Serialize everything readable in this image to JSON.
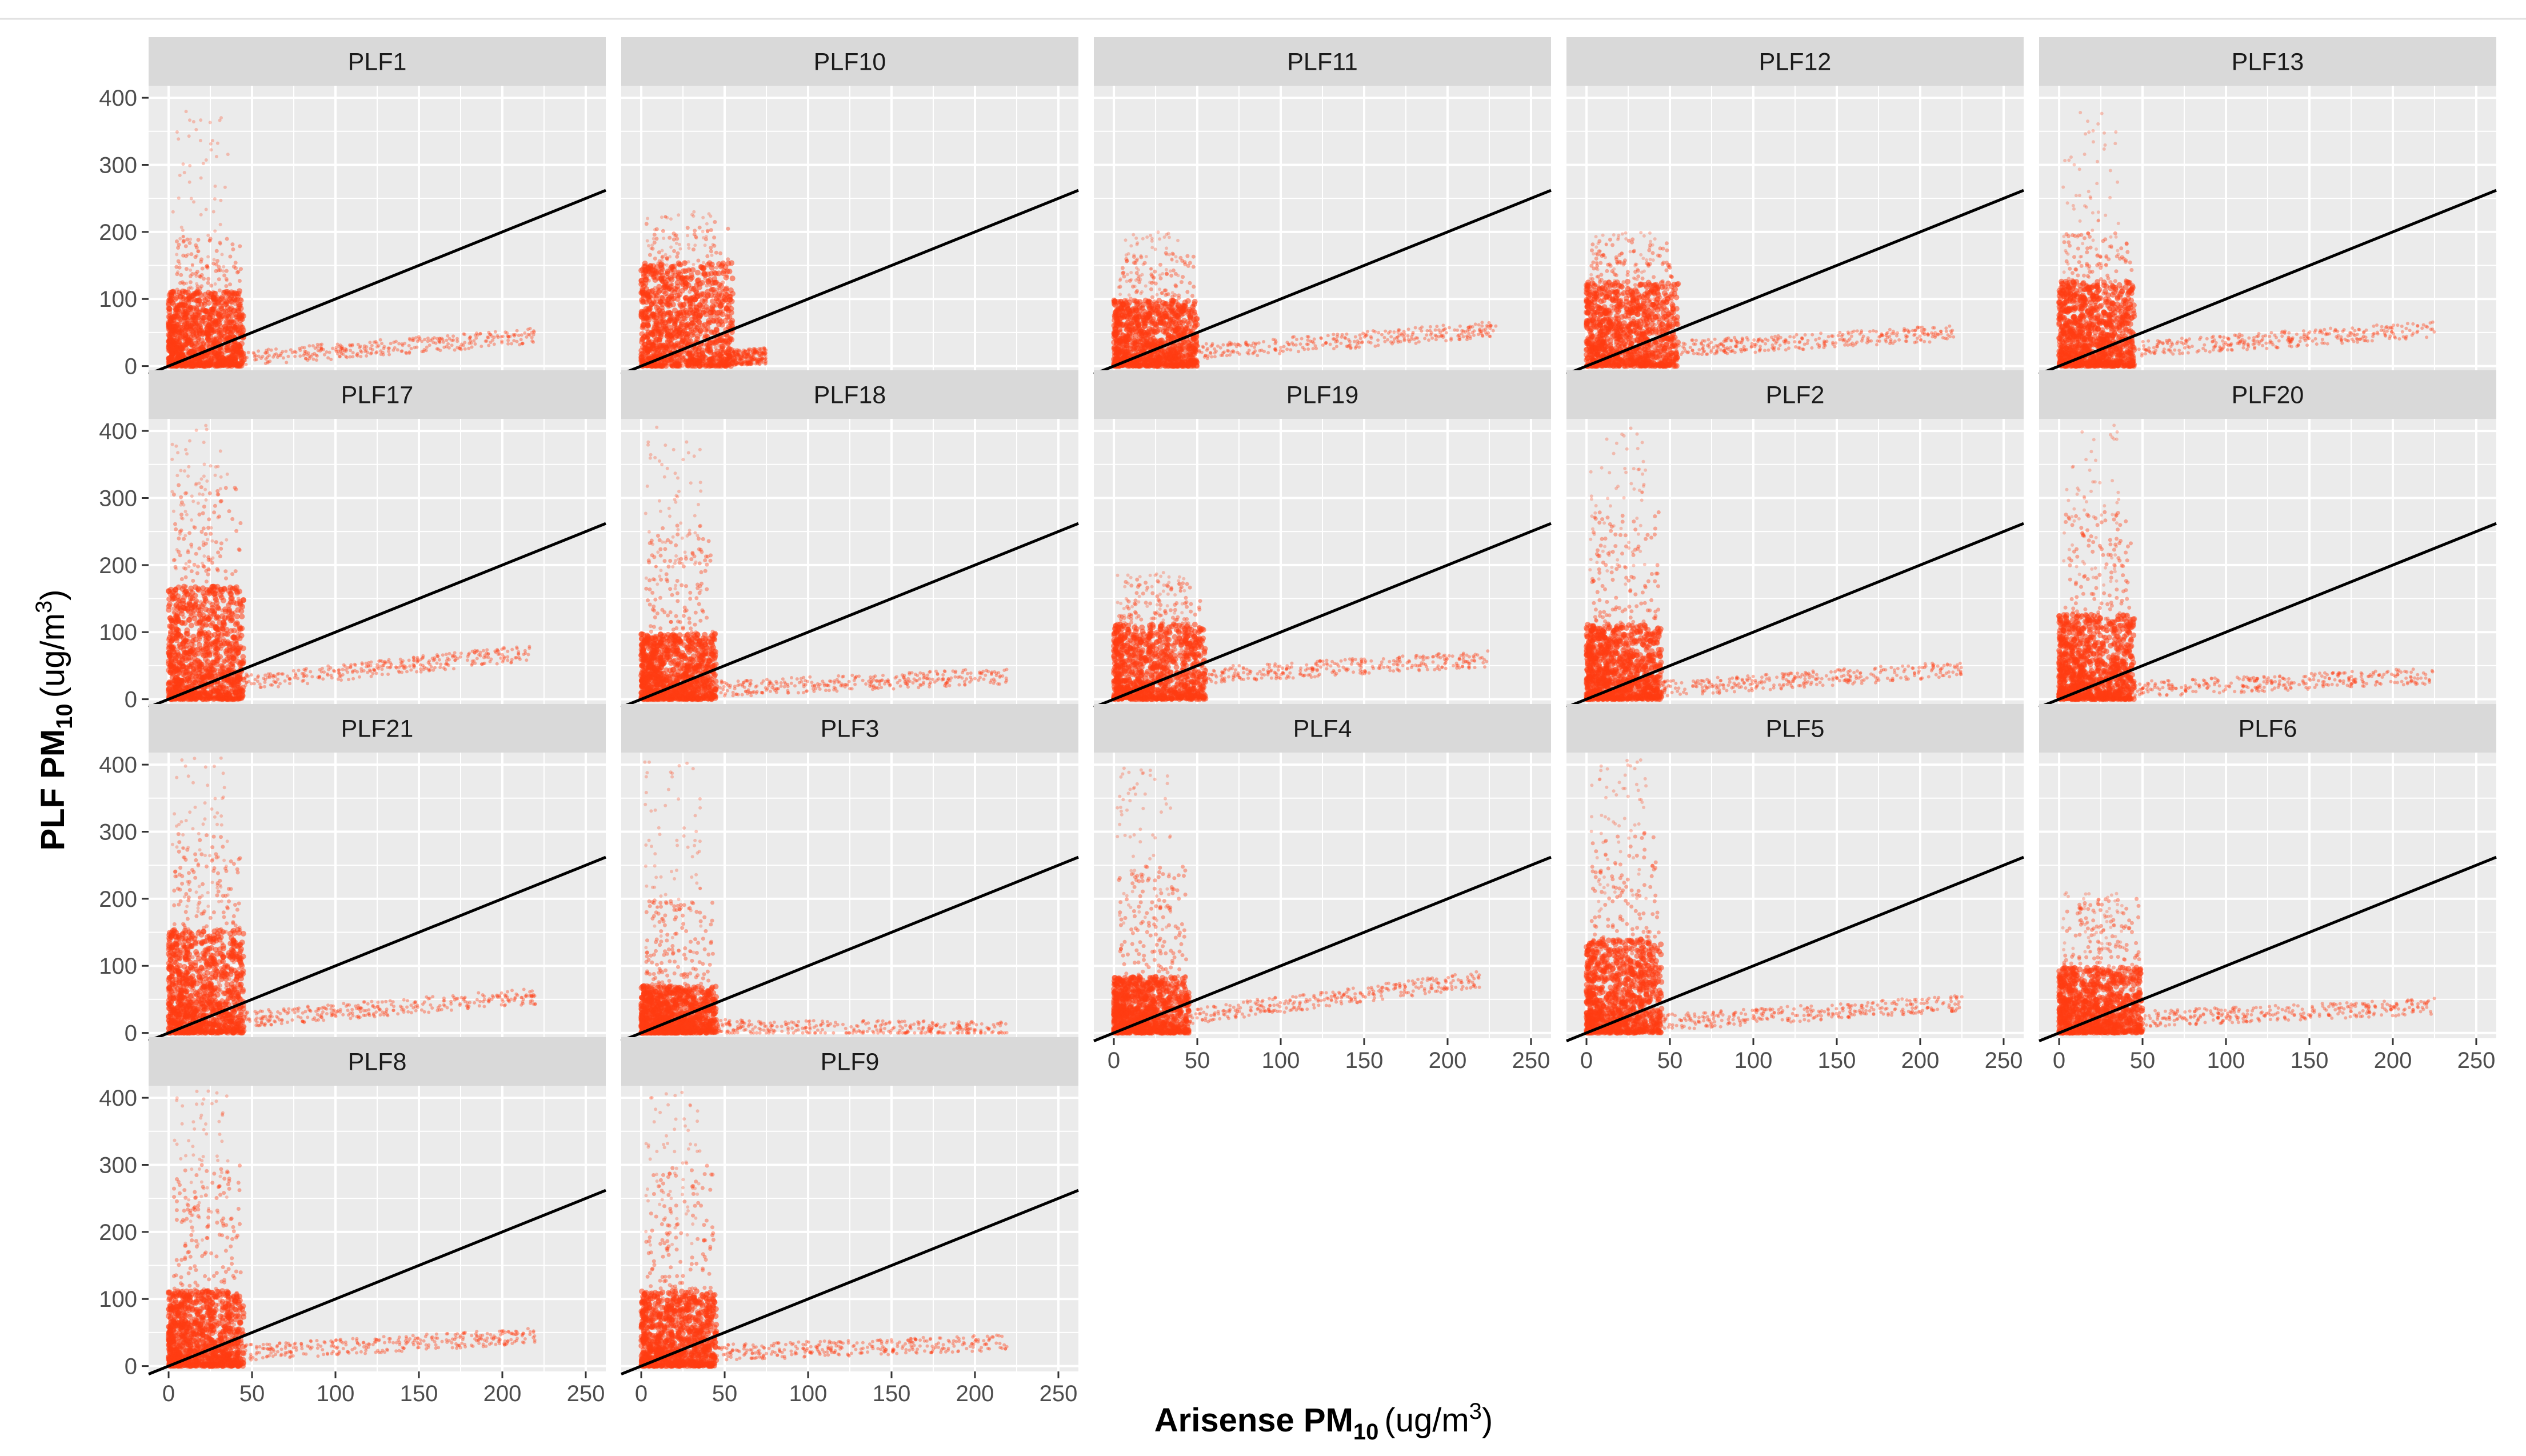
{
  "chart_data": {
    "type": "scatter",
    "layout": "faceted grid, 5 columns x 4 rows",
    "xlabel": {
      "main": "Arisense PM",
      "sub": "10",
      "unit_prefix": "(ug/m",
      "unit_sup": "3",
      "unit_suffix": ")"
    },
    "ylabel": {
      "main": "PLF PM",
      "sub": "10",
      "unit_prefix": "(ug/m",
      "unit_sup": "3",
      "unit_suffix": ")"
    },
    "xlim": [
      -12,
      262
    ],
    "ylim": [
      -8,
      418
    ],
    "x_ticks": [
      0,
      50,
      100,
      150,
      200,
      250
    ],
    "y_ticks": [
      0,
      100,
      200,
      300,
      400
    ],
    "x_tick_labels": [
      "0",
      "50",
      "100",
      "150",
      "200",
      "250"
    ],
    "y_tick_labels": [
      "0",
      "100",
      "200",
      "300",
      "400"
    ],
    "reference_line": {
      "type": "y = x",
      "slope": 1,
      "intercept": 0,
      "color": "#000000"
    },
    "point_color": "#ff3d12",
    "panel_background": "#ebebeb",
    "strip_background": "#d9d9d9",
    "gridline_color": "#ffffff",
    "facets": [
      {
        "label": "PLF1",
        "cluster": {
          "x": [
            0,
            45
          ],
          "y": [
            0,
            190
          ],
          "core_y": 80,
          "y_max": 380
        },
        "tail": {
          "x": [
            45,
            220
          ],
          "y_start": 12,
          "y_end": 45
        }
      },
      {
        "label": "PLF10",
        "cluster": {
          "x": [
            0,
            55
          ],
          "y": [
            0,
            215
          ],
          "core_y": 110,
          "y_max": 230
        },
        "tail": {
          "x": [
            50,
            75
          ],
          "y_start": 12,
          "y_end": 15
        }
      },
      {
        "label": "PLF11",
        "cluster": {
          "x": [
            0,
            50
          ],
          "y": [
            0,
            170
          ],
          "core_y": 70,
          "y_max": 200
        },
        "tail": {
          "x": [
            45,
            230
          ],
          "y_start": 20,
          "y_end": 55
        }
      },
      {
        "label": "PLF12",
        "cluster": {
          "x": [
            0,
            55
          ],
          "y": [
            0,
            190
          ],
          "core_y": 90,
          "y_max": 200
        },
        "tail": {
          "x": [
            50,
            220
          ],
          "y_start": 25,
          "y_end": 50
        }
      },
      {
        "label": "PLF13",
        "cluster": {
          "x": [
            0,
            45
          ],
          "y": [
            0,
            200
          ],
          "core_y": 90,
          "y_max": 380
        },
        "tail": {
          "x": [
            45,
            225
          ],
          "y_start": 25,
          "y_end": 55
        }
      },
      {
        "label": "PLF17",
        "cluster": {
          "x": [
            0,
            45
          ],
          "y": [
            0,
            320
          ],
          "core_y": 120,
          "y_max": 410
        },
        "tail": {
          "x": [
            45,
            220
          ],
          "y_start": 25,
          "y_end": 70
        }
      },
      {
        "label": "PLF18",
        "cluster": {
          "x": [
            0,
            45
          ],
          "y": [
            0,
            260
          ],
          "core_y": 70,
          "y_max": 410
        },
        "tail": {
          "x": [
            45,
            220
          ],
          "y_start": 15,
          "y_end": 35
        }
      },
      {
        "label": "PLF19",
        "cluster": {
          "x": [
            0,
            55
          ],
          "y": [
            0,
            180
          ],
          "core_y": 80,
          "y_max": 190
        },
        "tail": {
          "x": [
            50,
            225
          ],
          "y_start": 35,
          "y_end": 60
        }
      },
      {
        "label": "PLF2",
        "cluster": {
          "x": [
            0,
            45
          ],
          "y": [
            0,
            280
          ],
          "core_y": 80,
          "y_max": 410
        },
        "tail": {
          "x": [
            45,
            225
          ],
          "y_start": 15,
          "y_end": 45
        }
      },
      {
        "label": "PLF20",
        "cluster": {
          "x": [
            0,
            45
          ],
          "y": [
            0,
            280
          ],
          "core_y": 90,
          "y_max": 410
        },
        "tail": {
          "x": [
            45,
            225
          ],
          "y_start": 15,
          "y_end": 35
        }
      },
      {
        "label": "PLF21",
        "cluster": {
          "x": [
            0,
            45
          ],
          "y": [
            0,
            300
          ],
          "core_y": 110,
          "y_max": 410
        },
        "tail": {
          "x": [
            45,
            220
          ],
          "y_start": 20,
          "y_end": 55
        }
      },
      {
        "label": "PLF3",
        "cluster": {
          "x": [
            0,
            45
          ],
          "y": [
            0,
            200
          ],
          "core_y": 50,
          "y_max": 410
        },
        "tail": {
          "x": [
            45,
            220
          ],
          "y_start": 8,
          "y_end": 5
        }
      },
      {
        "label": "PLF4",
        "cluster": {
          "x": [
            0,
            45
          ],
          "y": [
            0,
            250
          ],
          "core_y": 60,
          "y_max": 410
        },
        "tail": {
          "x": [
            45,
            220
          ],
          "y_start": 25,
          "y_end": 80
        }
      },
      {
        "label": "PLF5",
        "cluster": {
          "x": [
            0,
            45
          ],
          "y": [
            0,
            300
          ],
          "core_y": 100,
          "y_max": 410
        },
        "tail": {
          "x": [
            45,
            225
          ],
          "y_start": 15,
          "y_end": 45
        }
      },
      {
        "label": "PLF6",
        "cluster": {
          "x": [
            0,
            50
          ],
          "y": [
            0,
            200
          ],
          "core_y": 70,
          "y_max": 210
        },
        "tail": {
          "x": [
            45,
            225
          ],
          "y_start": 20,
          "y_end": 40
        }
      },
      {
        "label": "PLF8",
        "cluster": {
          "x": [
            0,
            45
          ],
          "y": [
            0,
            300
          ],
          "core_y": 80,
          "y_max": 410
        },
        "tail": {
          "x": [
            45,
            220
          ],
          "y_start": 20,
          "y_end": 45
        }
      },
      {
        "label": "PLF9",
        "cluster": {
          "x": [
            0,
            45
          ],
          "y": [
            0,
            300
          ],
          "core_y": 80,
          "y_max": 410
        },
        "tail": {
          "x": [
            45,
            220
          ],
          "y_start": 20,
          "y_end": 35
        }
      }
    ]
  }
}
